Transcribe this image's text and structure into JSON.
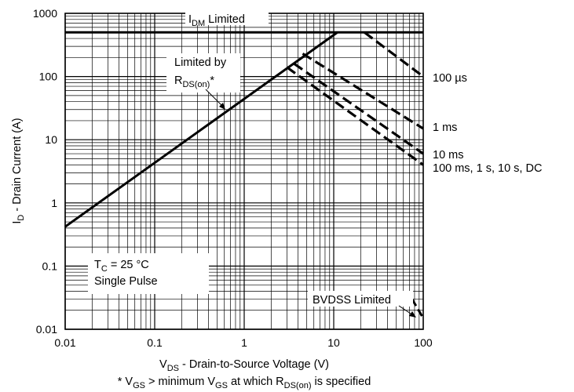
{
  "chart_data": {
    "type": "line",
    "xscale": "log",
    "yscale": "log",
    "xlim": [
      0.01,
      100
    ],
    "ylim": [
      0.01,
      1000
    ],
    "grid": true,
    "x_ticks": [
      "0.01",
      "0.1",
      "1",
      "10",
      "100"
    ],
    "y_ticks": [
      "0.01",
      "0.1",
      "1",
      "10",
      "100",
      "1000"
    ],
    "xlabel": {
      "main": "V",
      "sub": "DS",
      "rest": " - Drain-to-Source Voltage (V)"
    },
    "ylabel": {
      "main": "I",
      "sub": "D",
      "rest": " - Drain Current (A)"
    },
    "footnote": {
      "p1": "* V",
      "s1": "GS",
      "p2": " > minimum V",
      "s2": "GS",
      "p3": " at which R",
      "s3": "DS(on)",
      "p4": " is specified"
    },
    "annotations": {
      "idm": {
        "main": "I",
        "sub": "DM",
        "rest": " Limited"
      },
      "rds_line1": "Limited by",
      "rds_line2": {
        "main": "R",
        "sub": "DS(on)",
        "rest": "*"
      },
      "conditions_line1": {
        "main": "T",
        "sub": "C",
        "rest": " = 25 °C"
      },
      "conditions_line2": "Single Pulse",
      "bvdss": "BVDSS Limited"
    },
    "limits": {
      "idm_current": 500,
      "rds_line": [
        {
          "x": 0.01,
          "y": 0.42
        },
        {
          "x": 11,
          "y": 500
        }
      ]
    },
    "series": [
      {
        "name": "100 µs",
        "points": [
          {
            "x": 22,
            "y": 500
          },
          {
            "x": 100,
            "y": 100
          }
        ]
      },
      {
        "name": "1 ms",
        "points": [
          {
            "x": 4.5,
            "y": 230
          },
          {
            "x": 100,
            "y": 15
          }
        ]
      },
      {
        "name": "10 ms",
        "points": [
          {
            "x": 3.6,
            "y": 160
          },
          {
            "x": 100,
            "y": 6
          }
        ]
      },
      {
        "name": "100 ms, 1 s, 10 s, DC",
        "points": [
          {
            "x": 3,
            "y": 140
          },
          {
            "x": 100,
            "y": 4
          }
        ]
      }
    ],
    "bvdss_line": [
      {
        "x": 75,
        "y": 0.03
      },
      {
        "x": 100,
        "y": 0.015
      }
    ]
  }
}
